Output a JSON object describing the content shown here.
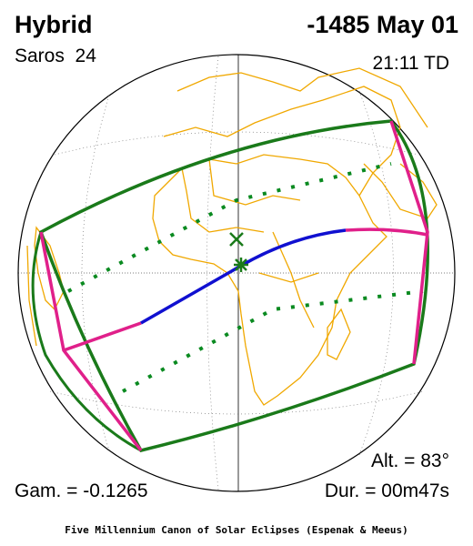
{
  "header": {
    "type": "Hybrid",
    "date": "-1485 May 01",
    "saros": "Saros  24",
    "time": "21:11 TD"
  },
  "footer": {
    "gamma": "Gam. = -0.1265",
    "altitude": "Alt. = 83°",
    "duration": "Dur. = 00m47s",
    "credit": "Five Millennium Canon of Solar Eclipses (Espenak & Meeus)"
  }
}
